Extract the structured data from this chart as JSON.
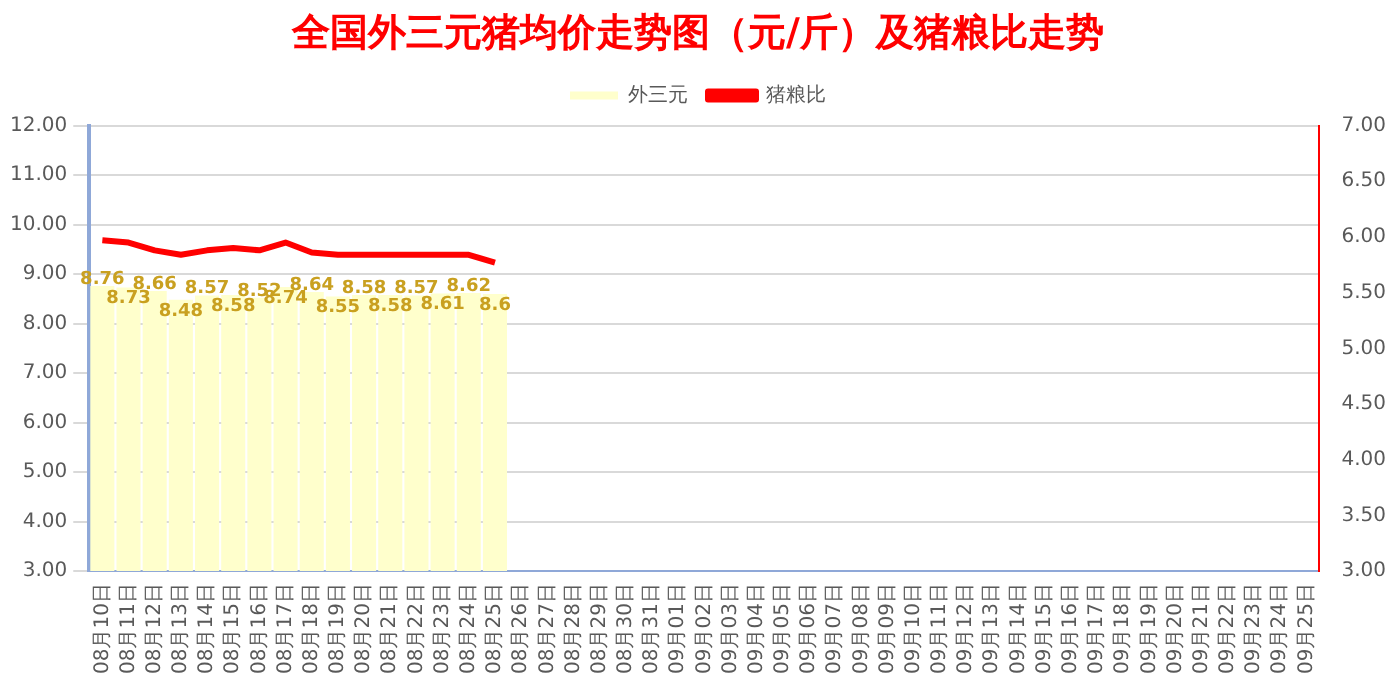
{
  "chart_data": {
    "type": "bar",
    "title": "全国外三元猪均价走势图（元/斤）及猪粮比走势",
    "categories": [
      "08月10日",
      "08月11日",
      "08月12日",
      "08月13日",
      "08月14日",
      "08月15日",
      "08月16日",
      "08月17日",
      "08月18日",
      "08月19日",
      "08月20日",
      "08月21日",
      "08月22日",
      "08月23日",
      "08月24日",
      "08月25日",
      "08月26日",
      "08月27日",
      "08月28日",
      "08月29日",
      "08月30日",
      "08月31日",
      "09月01日",
      "09月02日",
      "09月03日",
      "09月04日",
      "09月05日",
      "09月06日",
      "09月07日",
      "09月08日",
      "09月09日",
      "09月10日",
      "09月11日",
      "09月12日",
      "09月13日",
      "09月14日",
      "09月15日",
      "09月16日",
      "09月17日",
      "09月18日",
      "09月19日",
      "09月20日",
      "09月21日",
      "09月22日",
      "09月23日",
      "09月24日",
      "09月25日"
    ],
    "series": [
      {
        "name": "外三元",
        "color": "#ffffcc",
        "values": [
          8.76,
          8.73,
          8.66,
          8.48,
          8.57,
          8.58,
          8.52,
          8.74,
          8.64,
          8.55,
          8.58,
          8.58,
          8.57,
          8.61,
          8.62,
          8.6,
          null,
          null,
          null,
          null,
          null,
          null,
          null,
          null,
          null,
          null,
          null,
          null,
          null,
          null,
          null,
          null,
          null,
          null,
          null,
          null,
          null,
          null,
          null,
          null,
          null,
          null,
          null,
          null,
          null,
          null,
          null
        ],
        "value_labels": [
          "8.76",
          "8.73",
          "8.66",
          "8.48",
          "8.57",
          "8.58",
          "8.52",
          "8.74",
          "8.64",
          "8.55",
          "8.58",
          "8.58",
          "8.57",
          "8.61",
          "8.62",
          "8.6",
          null,
          null,
          null,
          null,
          null,
          null,
          null,
          null,
          null,
          null,
          null,
          null,
          null,
          null,
          null,
          null,
          null,
          null,
          null,
          null,
          null,
          null,
          null,
          null,
          null,
          null,
          null,
          null,
          null,
          null,
          null
        ]
      },
      {
        "name": "猪粮比",
        "type": "line",
        "axis": "y2",
        "color": "#ff0000",
        "values": [
          5.97,
          5.95,
          5.88,
          5.84,
          5.88,
          5.9,
          5.88,
          5.95,
          5.86,
          5.84,
          5.84,
          5.84,
          5.84,
          5.84,
          5.84,
          5.77,
          null,
          null,
          null,
          null,
          null,
          null,
          null,
          null,
          null,
          null,
          null,
          null,
          null,
          null,
          null,
          null,
          null,
          null,
          null,
          null,
          null,
          null,
          null,
          null,
          null,
          null,
          null,
          null,
          null,
          null,
          null
        ]
      }
    ],
    "ylim": [
      3,
      12
    ],
    "yticks": [
      {
        "value": 3,
        "label": "3.00"
      },
      {
        "value": 4,
        "label": "4.00"
      },
      {
        "value": 5,
        "label": "5.00"
      },
      {
        "value": 6,
        "label": "6.00"
      },
      {
        "value": 7,
        "label": "7.00"
      },
      {
        "value": 8,
        "label": "8.00"
      },
      {
        "value": 9,
        "label": "9.00"
      },
      {
        "value": 10,
        "label": "10.00"
      },
      {
        "value": 11,
        "label": "11.00"
      },
      {
        "value": 12,
        "label": "12.00"
      }
    ],
    "y2lim": [
      3,
      7
    ],
    "y2ticks": [
      {
        "value": 3,
        "label": "3.00"
      },
      {
        "value": 3.5,
        "label": "3.50"
      },
      {
        "value": 4,
        "label": "4.00"
      },
      {
        "value": 4.5,
        "label": "4.50"
      },
      {
        "value": 5,
        "label": "5.00"
      },
      {
        "value": 5.5,
        "label": "5.50"
      },
      {
        "value": 6,
        "label": "6.00"
      },
      {
        "value": 6.5,
        "label": "6.50"
      },
      {
        "value": 7,
        "label": "7.00"
      }
    ],
    "grid": "y",
    "legend": "top",
    "marker": "none",
    "line_style": "solid"
  }
}
